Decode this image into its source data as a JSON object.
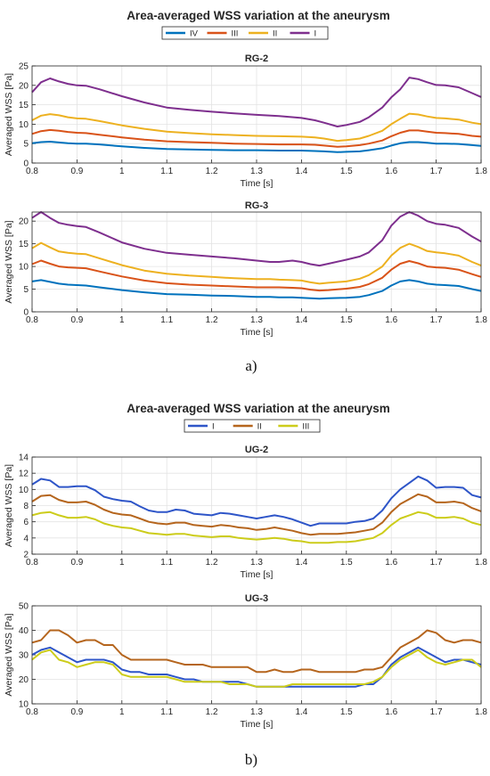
{
  "figure": {
    "group_a": {
      "title": "Area-averaged WSS variation at the aneurysm",
      "panel_label": "a)",
      "legend": [
        {
          "name": "IV",
          "color": "#0072bd"
        },
        {
          "name": "III",
          "color": "#d95319"
        },
        {
          "name": "II",
          "color": "#edb120"
        },
        {
          "name": "I",
          "color": "#7e2f8e"
        }
      ]
    },
    "group_b": {
      "title": "Area-averaged WSS variation at the aneurysm",
      "panel_label": "b)",
      "legend": [
        {
          "name": "I",
          "color": "#2e55c8"
        },
        {
          "name": "II",
          "color": "#b5651d"
        },
        {
          "name": "III",
          "color": "#cccc1a"
        }
      ]
    }
  },
  "chart_data": [
    {
      "type": "line",
      "title": "RG-2",
      "xlabel": "Time [s]",
      "ylabel": "Averaged WSS [Pa]",
      "xlim": [
        0.8,
        1.8
      ],
      "ylim": [
        0,
        25
      ],
      "xticks": [
        "0.8",
        "0.9",
        "1",
        "1.1",
        "1.2",
        "1.3",
        "1.4",
        "1.5",
        "1.6",
        "1.7",
        "1.8"
      ],
      "yticks": [
        "0",
        "5",
        "10",
        "15",
        "20",
        "25"
      ],
      "grid": true,
      "x": [
        0.8,
        0.82,
        0.84,
        0.86,
        0.88,
        0.9,
        0.92,
        0.95,
        1.0,
        1.05,
        1.1,
        1.15,
        1.2,
        1.25,
        1.3,
        1.35,
        1.4,
        1.43,
        1.45,
        1.48,
        1.5,
        1.53,
        1.55,
        1.58,
        1.6,
        1.62,
        1.64,
        1.66,
        1.68,
        1.7,
        1.72,
        1.75,
        1.78,
        1.8
      ],
      "series": [
        {
          "name": "IV",
          "color": "#0072bd",
          "values": [
            5.1,
            5.4,
            5.5,
            5.3,
            5.1,
            5.0,
            5.0,
            4.8,
            4.3,
            3.9,
            3.6,
            3.5,
            3.4,
            3.3,
            3.3,
            3.2,
            3.2,
            3.1,
            3.0,
            2.8,
            2.9,
            3.0,
            3.3,
            3.8,
            4.5,
            5.1,
            5.4,
            5.4,
            5.2,
            5.0,
            5.0,
            4.9,
            4.6,
            4.4
          ]
        },
        {
          "name": "III",
          "color": "#d95319",
          "values": [
            7.5,
            8.2,
            8.5,
            8.3,
            8.0,
            7.8,
            7.7,
            7.3,
            6.6,
            6.0,
            5.6,
            5.4,
            5.2,
            5.0,
            4.9,
            4.8,
            4.8,
            4.7,
            4.5,
            4.2,
            4.3,
            4.6,
            5.0,
            5.8,
            6.9,
            7.8,
            8.4,
            8.4,
            8.1,
            7.8,
            7.7,
            7.5,
            7.0,
            6.8
          ]
        },
        {
          "name": "II",
          "color": "#edb120",
          "values": [
            11.0,
            12.2,
            12.6,
            12.3,
            11.8,
            11.5,
            11.4,
            10.8,
            9.7,
            8.8,
            8.1,
            7.7,
            7.4,
            7.2,
            7.0,
            6.9,
            6.8,
            6.6,
            6.3,
            5.7,
            5.9,
            6.3,
            7.0,
            8.3,
            10.0,
            11.4,
            12.7,
            12.5,
            12.0,
            11.6,
            11.5,
            11.2,
            10.4,
            10.0
          ]
        },
        {
          "name": "I",
          "color": "#7e2f8e",
          "values": [
            18.2,
            20.8,
            21.8,
            21.0,
            20.4,
            20.0,
            19.9,
            19.0,
            17.2,
            15.6,
            14.3,
            13.7,
            13.2,
            12.8,
            12.4,
            12.1,
            11.6,
            11.0,
            10.4,
            9.4,
            9.8,
            10.6,
            11.8,
            14.3,
            16.9,
            19.0,
            22.0,
            21.6,
            20.8,
            20.1,
            20.0,
            19.5,
            18.0,
            17.0
          ]
        }
      ]
    },
    {
      "type": "line",
      "title": "RG-3",
      "xlabel": "Time [s]",
      "ylabel": "Averaged WSS [Pa]",
      "xlim": [
        0.8,
        1.8
      ],
      "ylim": [
        0,
        22
      ],
      "xticks": [
        "0.8",
        "0.9",
        "1",
        "1.1",
        "1.2",
        "1.3",
        "1.4",
        "1.5",
        "1.6",
        "1.7",
        "1.8"
      ],
      "yticks": [
        "0",
        "5",
        "10",
        "15",
        "20"
      ],
      "grid": true,
      "x": [
        0.8,
        0.82,
        0.84,
        0.86,
        0.88,
        0.9,
        0.92,
        0.95,
        1.0,
        1.05,
        1.1,
        1.15,
        1.2,
        1.25,
        1.3,
        1.33,
        1.35,
        1.38,
        1.4,
        1.42,
        1.44,
        1.46,
        1.5,
        1.53,
        1.55,
        1.58,
        1.6,
        1.62,
        1.64,
        1.66,
        1.68,
        1.7,
        1.72,
        1.75,
        1.78,
        1.8
      ],
      "series": [
        {
          "name": "IV",
          "color": "#0072bd",
          "values": [
            6.7,
            7.0,
            6.6,
            6.2,
            6.0,
            5.9,
            5.8,
            5.4,
            4.8,
            4.3,
            3.9,
            3.8,
            3.6,
            3.5,
            3.3,
            3.3,
            3.2,
            3.2,
            3.1,
            3.0,
            2.9,
            3.0,
            3.1,
            3.3,
            3.7,
            4.6,
            5.8,
            6.7,
            7.0,
            6.7,
            6.2,
            6.0,
            5.9,
            5.7,
            5.0,
            4.6
          ]
        },
        {
          "name": "III",
          "color": "#d95319",
          "values": [
            10.5,
            11.3,
            10.6,
            10.0,
            9.8,
            9.7,
            9.6,
            8.9,
            7.8,
            6.9,
            6.3,
            6.0,
            5.8,
            5.6,
            5.4,
            5.4,
            5.4,
            5.3,
            5.2,
            4.9,
            4.7,
            4.8,
            5.1,
            5.5,
            6.1,
            7.5,
            9.3,
            10.6,
            11.2,
            10.7,
            10.0,
            9.8,
            9.7,
            9.3,
            8.3,
            7.7
          ]
        },
        {
          "name": "II",
          "color": "#edb120",
          "values": [
            14.0,
            15.2,
            14.2,
            13.3,
            13.0,
            12.8,
            12.7,
            11.8,
            10.3,
            9.1,
            8.4,
            8.0,
            7.7,
            7.4,
            7.2,
            7.2,
            7.1,
            7.0,
            6.9,
            6.5,
            6.2,
            6.4,
            6.7,
            7.3,
            8.1,
            10.0,
            12.4,
            14.1,
            15.0,
            14.3,
            13.4,
            13.1,
            12.9,
            12.4,
            11.0,
            10.2
          ]
        },
        {
          "name": "I",
          "color": "#7e2f8e",
          "values": [
            20.7,
            22.0,
            20.7,
            19.6,
            19.2,
            18.9,
            18.7,
            17.5,
            15.3,
            13.9,
            13.0,
            12.6,
            12.2,
            11.8,
            11.3,
            11.0,
            11.0,
            11.3,
            11.0,
            10.5,
            10.2,
            10.6,
            11.5,
            12.2,
            13.1,
            15.8,
            19.0,
            21.0,
            22.0,
            21.2,
            20.0,
            19.4,
            19.2,
            18.5,
            16.6,
            15.5
          ]
        }
      ]
    },
    {
      "type": "line",
      "title": "UG-2",
      "xlabel": "Time [s]",
      "ylabel": "Averaged WSS [Pa]",
      "xlim": [
        0.8,
        1.8
      ],
      "ylim": [
        2,
        14
      ],
      "xticks": [
        "0.8",
        "0.9",
        "1",
        "1.1",
        "1.2",
        "1.3",
        "1.4",
        "1.5",
        "1.6",
        "1.7",
        "1.8"
      ],
      "yticks": [
        "2",
        "4",
        "6",
        "8",
        "10",
        "12",
        "14"
      ],
      "grid": true,
      "x": [
        0.8,
        0.82,
        0.84,
        0.86,
        0.88,
        0.9,
        0.92,
        0.94,
        0.96,
        0.98,
        1.0,
        1.02,
        1.04,
        1.06,
        1.08,
        1.1,
        1.12,
        1.14,
        1.16,
        1.18,
        1.2,
        1.22,
        1.24,
        1.26,
        1.28,
        1.3,
        1.32,
        1.34,
        1.36,
        1.38,
        1.4,
        1.42,
        1.44,
        1.46,
        1.48,
        1.5,
        1.52,
        1.54,
        1.56,
        1.58,
        1.6,
        1.62,
        1.64,
        1.66,
        1.68,
        1.7,
        1.72,
        1.74,
        1.76,
        1.78,
        1.8
      ],
      "series": [
        {
          "name": "I",
          "color": "#2e55c8",
          "values": [
            10.6,
            11.3,
            11.1,
            10.3,
            10.3,
            10.4,
            10.4,
            9.9,
            9.1,
            8.8,
            8.6,
            8.5,
            7.9,
            7.4,
            7.2,
            7.2,
            7.5,
            7.4,
            7.0,
            6.9,
            6.8,
            7.1,
            7.0,
            6.8,
            6.6,
            6.4,
            6.6,
            6.8,
            6.6,
            6.3,
            5.9,
            5.5,
            5.8,
            5.8,
            5.8,
            5.8,
            6.0,
            6.1,
            6.4,
            7.4,
            8.9,
            10.0,
            10.8,
            11.6,
            11.1,
            10.2,
            10.3,
            10.3,
            10.2,
            9.3,
            9.0
          ]
        },
        {
          "name": "II",
          "color": "#b5651d",
          "values": [
            8.5,
            9.2,
            9.3,
            8.7,
            8.4,
            8.4,
            8.5,
            8.1,
            7.5,
            7.1,
            6.9,
            6.8,
            6.4,
            6.0,
            5.8,
            5.7,
            5.9,
            5.9,
            5.6,
            5.5,
            5.4,
            5.6,
            5.5,
            5.3,
            5.2,
            5.0,
            5.1,
            5.3,
            5.1,
            4.9,
            4.6,
            4.4,
            4.5,
            4.5,
            4.5,
            4.6,
            4.7,
            4.9,
            5.1,
            5.9,
            7.2,
            8.2,
            8.8,
            9.4,
            9.1,
            8.4,
            8.4,
            8.5,
            8.3,
            7.7,
            7.3
          ]
        },
        {
          "name": "III",
          "color": "#cccc1a",
          "values": [
            6.8,
            7.1,
            7.2,
            6.8,
            6.5,
            6.5,
            6.6,
            6.3,
            5.8,
            5.5,
            5.3,
            5.2,
            4.9,
            4.6,
            4.5,
            4.4,
            4.5,
            4.5,
            4.3,
            4.2,
            4.1,
            4.2,
            4.2,
            4.0,
            3.9,
            3.8,
            3.9,
            4.0,
            3.9,
            3.7,
            3.6,
            3.4,
            3.4,
            3.4,
            3.5,
            3.5,
            3.6,
            3.8,
            4.0,
            4.6,
            5.6,
            6.4,
            6.8,
            7.2,
            7.0,
            6.5,
            6.5,
            6.6,
            6.4,
            5.9,
            5.6
          ]
        }
      ]
    },
    {
      "type": "line",
      "title": "UG-3",
      "xlabel": "Time [s]",
      "ylabel": "Averaged WSS [Pa]",
      "xlim": [
        0.8,
        1.8
      ],
      "ylim": [
        10,
        50
      ],
      "xticks": [
        "0.8",
        "0.9",
        "1",
        "1.1",
        "1.2",
        "1.3",
        "1.4",
        "1.5",
        "1.6",
        "1.7",
        "1.8"
      ],
      "yticks": [
        "10",
        "20",
        "30",
        "40",
        "50"
      ],
      "grid": true,
      "x": [
        0.8,
        0.82,
        0.84,
        0.86,
        0.88,
        0.9,
        0.92,
        0.94,
        0.96,
        0.98,
        1.0,
        1.02,
        1.04,
        1.06,
        1.08,
        1.1,
        1.12,
        1.14,
        1.16,
        1.18,
        1.2,
        1.22,
        1.24,
        1.26,
        1.28,
        1.3,
        1.32,
        1.34,
        1.36,
        1.38,
        1.4,
        1.42,
        1.44,
        1.46,
        1.48,
        1.5,
        1.52,
        1.54,
        1.56,
        1.58,
        1.6,
        1.62,
        1.64,
        1.66,
        1.68,
        1.7,
        1.72,
        1.74,
        1.76,
        1.78,
        1.8
      ],
      "series": [
        {
          "name": "I",
          "color": "#2e55c8",
          "values": [
            30,
            32,
            33,
            31,
            29,
            27,
            28,
            28,
            28,
            27,
            24,
            23,
            23,
            22,
            22,
            22,
            21,
            20,
            20,
            19,
            19,
            19,
            19,
            19,
            18,
            17,
            17,
            17,
            17,
            17,
            17,
            17,
            17,
            17,
            17,
            17,
            17,
            18,
            18,
            21,
            26,
            29,
            31,
            33,
            31,
            29,
            27,
            28,
            28,
            27,
            26
          ]
        },
        {
          "name": "II",
          "color": "#b5651d",
          "values": [
            35,
            36,
            40,
            40,
            38,
            35,
            36,
            36,
            34,
            34,
            30,
            28,
            28,
            28,
            28,
            28,
            27,
            26,
            26,
            26,
            25,
            25,
            25,
            25,
            25,
            23,
            23,
            24,
            23,
            23,
            24,
            24,
            23,
            23,
            23,
            23,
            23,
            24,
            24,
            25,
            29,
            33,
            35,
            37,
            40,
            39,
            36,
            35,
            36,
            36,
            35
          ]
        },
        {
          "name": "III",
          "color": "#cccc1a",
          "values": [
            28,
            31,
            32,
            28,
            27,
            25,
            26,
            27,
            27,
            26,
            22,
            21,
            21,
            21,
            21,
            21,
            20,
            19,
            19,
            19,
            19,
            19,
            18,
            18,
            18,
            17,
            17,
            17,
            17,
            18,
            18,
            18,
            18,
            18,
            18,
            18,
            18,
            18,
            19,
            21,
            25,
            28,
            30,
            32,
            29,
            27,
            26,
            27,
            28,
            28,
            25
          ]
        }
      ]
    }
  ]
}
